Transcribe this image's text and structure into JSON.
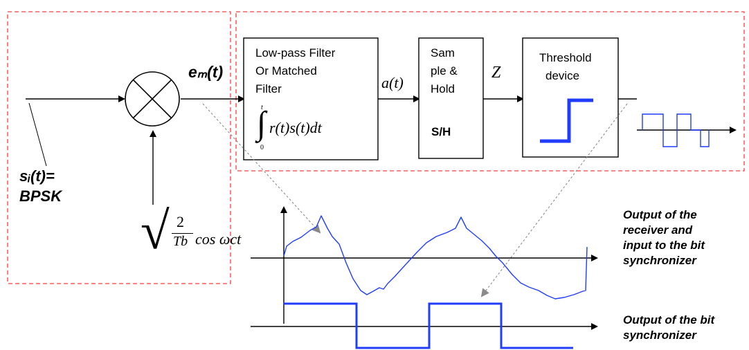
{
  "blocks": {
    "lpf_title_1": "Low-pass Filter",
    "lpf_title_2": "Or Matched",
    "lpf_title_3": "Filter",
    "integral_upper": "t",
    "integral_lower": "0",
    "integral_expression": "r(t)s(t)dt",
    "sample_hold_1": "Sam",
    "sample_hold_2": "ple &",
    "sample_hold_3": "Hold",
    "sample_hold_abbrev": "S/H",
    "threshold_1": "Threshold",
    "threshold_2": "device"
  },
  "signals": {
    "input_label": "sᵢ(t)=",
    "input_modulation": "BPSK",
    "mixer_output": "eₘ(t)",
    "filter_output": "a(t)",
    "sampled_output": "Z",
    "carrier_numerator": "2",
    "carrier_denominator": "Tb",
    "carrier_function": "cos ωct"
  },
  "notes": {
    "receiver_output_1": "Output of the",
    "receiver_output_2": "receiver and",
    "receiver_output_3": "input to the bit",
    "receiver_output_4": "synchronizer",
    "bit_sync_1": "Output of the bit",
    "bit_sync_2": "synchronizer"
  },
  "colors": {
    "dashed_outline": "#ff3b3b",
    "signal_blue": "#1f3cff",
    "guide_line": "#8a8a8a",
    "line": "#000000"
  }
}
